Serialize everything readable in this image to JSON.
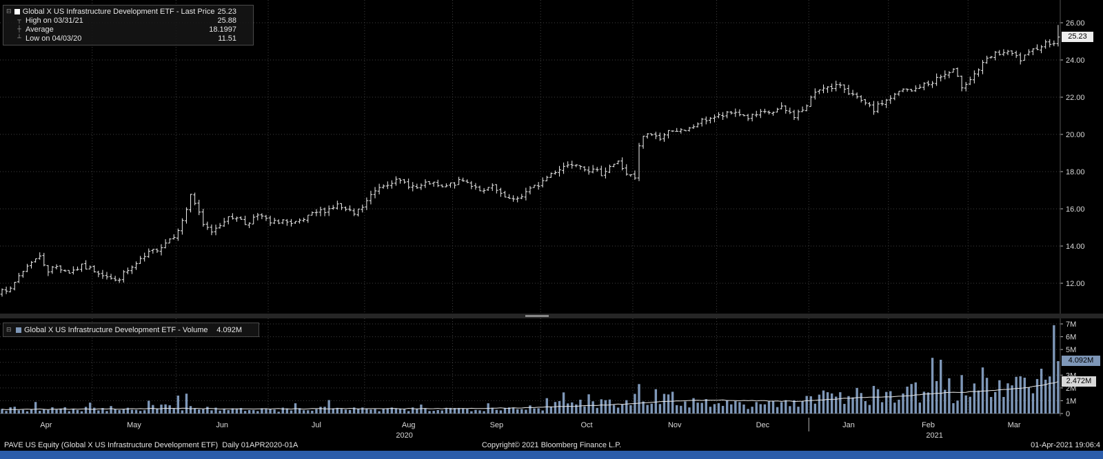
{
  "legend": {
    "series_label": "Global X US Infrastructure Development ETF - Last Price",
    "series_value": "25.23",
    "high_label": "High on 03/31/21",
    "high_value": "25.88",
    "avg_label": "Average",
    "avg_value": "18.1997",
    "low_label": "Low on 04/03/20",
    "low_value": "11.51"
  },
  "volume_legend": {
    "label": "Global X US Infrastructure Development ETF - Volume",
    "value": "4.092M"
  },
  "footer": {
    "left": "PAVE US Equity (Global X US Infrastructure Development ETF)  Daily 01APR2020-01A",
    "center": "Copyright© 2021 Bloomberg Finance L.P.",
    "right": "01-Apr-2021 19:06:4"
  },
  "icons": {
    "collapse": "⊟",
    "high_marker": "┬",
    "avg_marker": "┼",
    "low_marker": "┴"
  },
  "colors": {
    "ohlc_bar": "#f2f2f2",
    "volume_bar": "#7e97b8",
    "grid": "#424242",
    "badge_white": "#eeeeee",
    "badge_blue": "#7e97b8",
    "taskbar_blue": "#2a5caa"
  },
  "chart_data": {
    "type": "ohlc+volume",
    "title": "Global X US Infrastructure Development ETF",
    "security": "PAVE US Equity",
    "period": "Daily 01APR2020-01APR2021",
    "last_price": 25.23,
    "last_price_label": "25.23",
    "high": {
      "date": "03/31/21",
      "value": 25.88
    },
    "average": 18.1997,
    "low": {
      "date": "04/03/20",
      "value": 11.51
    },
    "volume_last_label": "4.092M",
    "volume_avg_label": "2.472M",
    "days": 253,
    "seed": 7,
    "price_axis_range": [
      12,
      26
    ],
    "price_ticks": [
      26,
      24,
      22,
      20,
      18,
      16,
      14,
      12
    ],
    "volume_ticks": [
      [
        7,
        "7M"
      ],
      [
        6,
        "6M"
      ],
      [
        5,
        "5M"
      ],
      [
        3,
        "3M"
      ],
      [
        2,
        "2M"
      ],
      [
        1,
        "1M"
      ],
      [
        0,
        "0"
      ]
    ],
    "month_labels": [
      "Apr",
      "May",
      "Jun",
      "Jul",
      "Aug",
      "Sep",
      "Oct",
      "Nov",
      "Dec",
      "Jan",
      "Feb",
      "Mar"
    ],
    "month_starts": [
      0,
      22,
      42,
      64,
      87,
      108,
      129,
      151,
      171,
      193,
      212,
      231
    ],
    "year_labels": [
      {
        "label": "2020",
        "from": 0,
        "to": 193
      },
      {
        "label": "2021",
        "from": 193,
        "to": 253
      }
    ],
    "final": {
      "close": 25.23,
      "high": 25.88,
      "low_day": 2,
      "low": 11.51
    },
    "price_anchors": [
      [
        0,
        11.8
      ],
      [
        2,
        11.6
      ],
      [
        4,
        12.4
      ],
      [
        7,
        13.2
      ],
      [
        9,
        13.4
      ],
      [
        11,
        12.7
      ],
      [
        13,
        12.9
      ],
      [
        16,
        12.6
      ],
      [
        19,
        12.9
      ],
      [
        22,
        12.7
      ],
      [
        25,
        12.4
      ],
      [
        27,
        12.1
      ],
      [
        29,
        12.5
      ],
      [
        32,
        13.0
      ],
      [
        35,
        13.6
      ],
      [
        38,
        14.0
      ],
      [
        41,
        14.6
      ],
      [
        43,
        15.3
      ],
      [
        44,
        16.0
      ],
      [
        45,
        16.8
      ],
      [
        46,
        16.3
      ],
      [
        48,
        15.1
      ],
      [
        50,
        14.8
      ],
      [
        53,
        15.4
      ],
      [
        56,
        15.6
      ],
      [
        58,
        15.2
      ],
      [
        60,
        15.5
      ],
      [
        62,
        15.6
      ],
      [
        64,
        15.2
      ],
      [
        67,
        15.4
      ],
      [
        69,
        15.1
      ],
      [
        72,
        15.4
      ],
      [
        75,
        15.8
      ],
      [
        78,
        16.0
      ],
      [
        80,
        16.2
      ],
      [
        82,
        15.9
      ],
      [
        84,
        15.7
      ],
      [
        86,
        16.1
      ],
      [
        88,
        16.7
      ],
      [
        90,
        17.2
      ],
      [
        93,
        17.5
      ],
      [
        96,
        17.4
      ],
      [
        99,
        17.1
      ],
      [
        102,
        17.4
      ],
      [
        105,
        17.1
      ],
      [
        107,
        17.3
      ],
      [
        110,
        17.5
      ],
      [
        113,
        17.2
      ],
      [
        115,
        16.9
      ],
      [
        117,
        17.2
      ],
      [
        119,
        16.7
      ],
      [
        122,
        16.4
      ],
      [
        125,
        16.9
      ],
      [
        128,
        17.3
      ],
      [
        131,
        17.9
      ],
      [
        134,
        18.3
      ],
      [
        137,
        18.5
      ],
      [
        140,
        18.1
      ],
      [
        143,
        17.9
      ],
      [
        145,
        18.3
      ],
      [
        147,
        18.5
      ],
      [
        149,
        17.9
      ],
      [
        151,
        17.6
      ],
      [
        152,
        19.3
      ],
      [
        153,
        19.9
      ],
      [
        155,
        20.0
      ],
      [
        157,
        19.8
      ],
      [
        160,
        20.3
      ],
      [
        163,
        20.1
      ],
      [
        166,
        20.6
      ],
      [
        169,
        20.9
      ],
      [
        172,
        21.0
      ],
      [
        175,
        21.2
      ],
      [
        178,
        20.9
      ],
      [
        181,
        21.1
      ],
      [
        184,
        21.2
      ],
      [
        186,
        21.4
      ],
      [
        189,
        21.0
      ],
      [
        192,
        21.5
      ],
      [
        194,
        22.3
      ],
      [
        196,
        22.6
      ],
      [
        198,
        22.4
      ],
      [
        200,
        22.7
      ],
      [
        202,
        22.3
      ],
      [
        204,
        21.9
      ],
      [
        206,
        21.6
      ],
      [
        208,
        21.3
      ],
      [
        210,
        21.7
      ],
      [
        213,
        22.1
      ],
      [
        215,
        22.4
      ],
      [
        217,
        22.3
      ],
      [
        219,
        22.6
      ],
      [
        221,
        22.7
      ],
      [
        223,
        23.0
      ],
      [
        225,
        23.2
      ],
      [
        227,
        23.4
      ],
      [
        229,
        22.6
      ],
      [
        231,
        23.0
      ],
      [
        233,
        23.5
      ],
      [
        235,
        24.0
      ],
      [
        237,
        24.3
      ],
      [
        239,
        24.4
      ],
      [
        241,
        24.3
      ],
      [
        243,
        24.0
      ],
      [
        245,
        24.3
      ],
      [
        247,
        24.7
      ],
      [
        249,
        24.9
      ],
      [
        251,
        25.0
      ],
      [
        252,
        25.23
      ]
    ],
    "volume_anchors": [
      [
        0,
        0.35
      ],
      [
        10,
        0.3
      ],
      [
        20,
        0.35
      ],
      [
        30,
        0.4
      ],
      [
        40,
        0.5
      ],
      [
        45,
        0.55
      ],
      [
        50,
        0.35
      ],
      [
        60,
        0.28
      ],
      [
        70,
        0.3
      ],
      [
        80,
        0.38
      ],
      [
        87,
        0.3
      ],
      [
        100,
        0.3
      ],
      [
        108,
        0.35
      ],
      [
        115,
        0.4
      ],
      [
        125,
        0.45
      ],
      [
        129,
        0.5
      ],
      [
        135,
        0.75
      ],
      [
        142,
        0.85
      ],
      [
        151,
        1.1
      ],
      [
        155,
        1.35
      ],
      [
        160,
        1.1
      ],
      [
        165,
        0.9
      ],
      [
        171,
        0.8
      ],
      [
        180,
        0.7
      ],
      [
        186,
        0.8
      ],
      [
        192,
        0.9
      ],
      [
        194,
        1.2
      ],
      [
        200,
        1.4
      ],
      [
        205,
        1.5
      ],
      [
        211,
        1.3
      ],
      [
        214,
        1.4
      ],
      [
        218,
        1.6
      ],
      [
        222,
        2.0
      ],
      [
        226,
        1.8
      ],
      [
        230,
        1.6
      ],
      [
        233,
        1.8
      ],
      [
        236,
        2.0
      ],
      [
        240,
        1.8
      ],
      [
        244,
        2.0
      ],
      [
        248,
        2.4
      ],
      [
        252,
        3.0
      ]
    ],
    "volume_spikes": {
      "8": 0.9,
      "21": 0.85,
      "35": 1.0,
      "42": 1.4,
      "44": 1.55,
      "70": 0.8,
      "78": 1.05,
      "100": 0.7,
      "116": 0.8,
      "130": 1.2,
      "134": 1.65,
      "140": 1.5,
      "152": 2.3,
      "156": 1.9,
      "160": 1.7,
      "196": 1.8,
      "204": 2.0,
      "209": 1.9,
      "216": 2.1,
      "222": 4.35,
      "224": 4.2,
      "229": 3.0,
      "234": 3.6,
      "238": 2.6,
      "241": 2.2,
      "244": 2.8,
      "248": 3.5,
      "250": 2.9,
      "251": 6.9,
      "252": 4.092
    },
    "volume_avg_anchors": [
      [
        0,
        0.32
      ],
      [
        20,
        0.34
      ],
      [
        40,
        0.4
      ],
      [
        60,
        0.36
      ],
      [
        80,
        0.38
      ],
      [
        100,
        0.38
      ],
      [
        120,
        0.42
      ],
      [
        130,
        0.5
      ],
      [
        140,
        0.62
      ],
      [
        150,
        0.75
      ],
      [
        155,
        0.88
      ],
      [
        160,
        0.98
      ],
      [
        165,
        1.02
      ],
      [
        170,
        1.05
      ],
      [
        180,
        1.0
      ],
      [
        190,
        0.95
      ],
      [
        195,
        1.05
      ],
      [
        200,
        1.15
      ],
      [
        205,
        1.25
      ],
      [
        211,
        1.3
      ],
      [
        215,
        1.35
      ],
      [
        220,
        1.5
      ],
      [
        225,
        1.62
      ],
      [
        230,
        1.68
      ],
      [
        235,
        1.78
      ],
      [
        240,
        1.9
      ],
      [
        244,
        2.0
      ],
      [
        248,
        2.2
      ],
      [
        252,
        2.472
      ]
    ]
  }
}
